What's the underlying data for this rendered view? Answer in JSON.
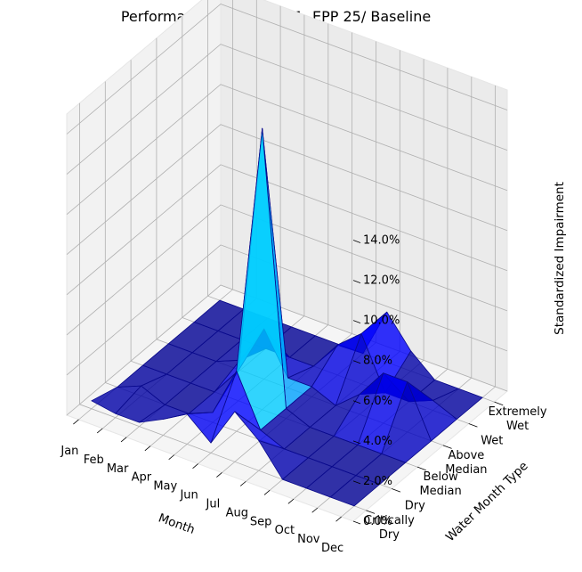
{
  "chart_data": {
    "type": "surface3d",
    "title": "Performance for LOI 1111, EPP 25/ Baseline",
    "xlabel": "Month",
    "ylabel": "Water Month Type",
    "zlabel": "Standardized Impairment",
    "x_categories": [
      "Jan",
      "Feb",
      "Mar",
      "Apr",
      "May",
      "Jun",
      "Jul",
      "Aug",
      "Sep",
      "Oct",
      "Nov",
      "Dec"
    ],
    "y_categories": [
      [
        "Critically",
        "Dry"
      ],
      [
        "Dry"
      ],
      [
        "Below",
        "Median"
      ],
      [
        "Above",
        "Median"
      ],
      [
        "Wet"
      ],
      [
        "Extremely",
        "Wet"
      ]
    ],
    "z_ticks": [
      "0.0%",
      "2.0%",
      "4.0%",
      "6.0%",
      "8.0%",
      "10.0%",
      "12.0%",
      "14.0%"
    ],
    "zlim": [
      0,
      15
    ],
    "z_values_percent": [
      [
        0.4,
        0.2,
        0.2,
        0.8,
        1.5,
        0.5,
        2.5,
        1.5,
        0.0,
        0.0,
        0.0,
        0.0
      ],
      [
        0.0,
        0.5,
        0.0,
        0.0,
        0.5,
        3.0,
        0.5,
        0.0,
        0.0,
        0.0,
        0.0,
        0.0
      ],
      [
        0.0,
        0.0,
        0.0,
        0.0,
        1.5,
        14.0,
        0.5,
        0.0,
        0.0,
        0.0,
        0.0,
        0.0
      ],
      [
        0.0,
        0.0,
        0.0,
        0.5,
        2.5,
        0.5,
        0.5,
        0.0,
        1.0,
        2.5,
        2.5,
        0.0
      ],
      [
        0.0,
        0.0,
        0.0,
        0.0,
        0.0,
        0.0,
        1.5,
        2.5,
        0.0,
        0.0,
        0.5,
        0.0
      ],
      [
        0.0,
        0.0,
        0.0,
        0.0,
        0.0,
        0.0,
        0.0,
        2.5,
        1.0,
        0.0,
        0.0,
        0.0
      ]
    ],
    "colormap": "jet",
    "grid": true
  }
}
